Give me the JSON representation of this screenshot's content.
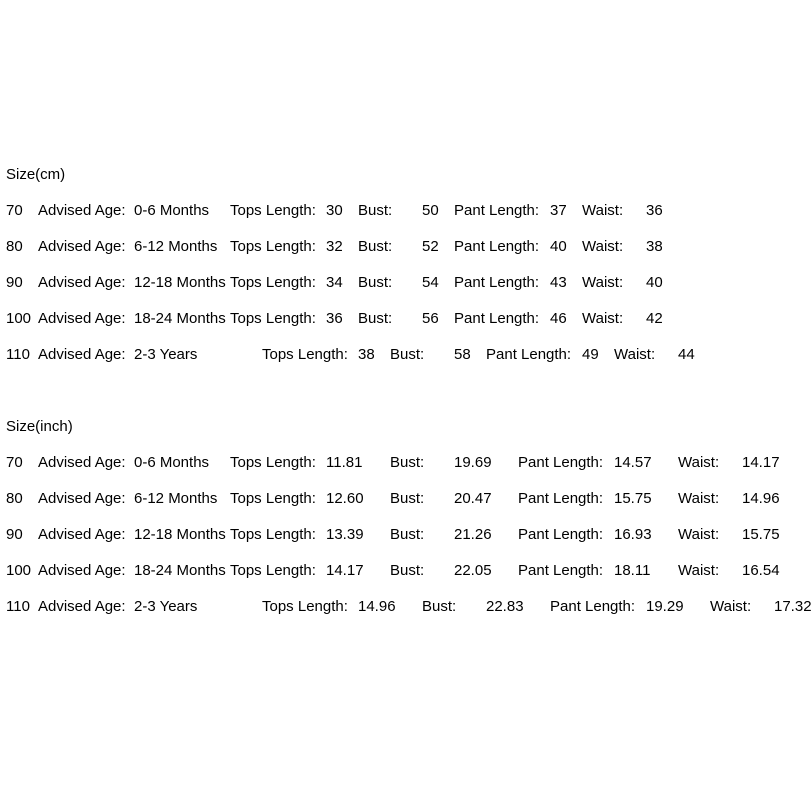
{
  "page": {
    "background": "#ffffff",
    "text_color": "#000000"
  },
  "labels": {
    "advised_age": "Advised Age:",
    "tops_length": "Tops Length:",
    "bust": "Bust:",
    "pant_length": "Pant Length:",
    "waist": "Waist:"
  },
  "sections": [
    {
      "title": "Size(cm)",
      "rows": [
        {
          "size": "70",
          "age": "0-6 Months",
          "tops": "30",
          "bust": "50",
          "pant": "37",
          "waist": "36"
        },
        {
          "size": "80",
          "age": "6-12 Months",
          "tops": "32",
          "bust": "52",
          "pant": "40",
          "waist": "38"
        },
        {
          "size": "90",
          "age": "12-18 Months",
          "tops": "34",
          "bust": "54",
          "pant": "43",
          "waist": "40"
        },
        {
          "size": "100",
          "age": "18-24 Months",
          "tops": "36",
          "bust": "56",
          "pant": "46",
          "waist": "42"
        },
        {
          "size": "110",
          "age": "2-3 Years",
          "tops": "38",
          "bust": "58",
          "pant": "49",
          "waist": "44"
        }
      ]
    },
    {
      "title": "Size(inch)",
      "rows": [
        {
          "size": "70",
          "age": "0-6 Months",
          "tops": "11.81",
          "bust": "19.69",
          "pant": "14.57",
          "waist": "14.17"
        },
        {
          "size": "80",
          "age": "6-12 Months",
          "tops": "12.60",
          "bust": "20.47",
          "pant": "15.75",
          "waist": "14.96"
        },
        {
          "size": "90",
          "age": "12-18 Months",
          "tops": "13.39",
          "bust": "21.26",
          "pant": "16.93",
          "waist": "15.75"
        },
        {
          "size": "100",
          "age": "18-24 Months",
          "tops": "14.17",
          "bust": "22.05",
          "pant": "18.11",
          "waist": "16.54"
        },
        {
          "size": "110",
          "age": "2-3 Years",
          "tops": "14.96",
          "bust": "22.83",
          "pant": "19.29",
          "waist": "17.32"
        }
      ]
    }
  ]
}
